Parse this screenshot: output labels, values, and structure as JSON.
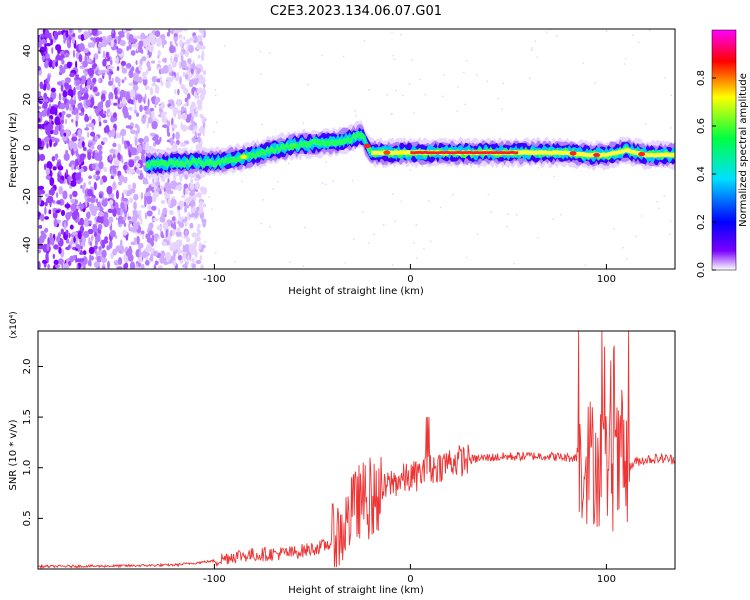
{
  "figure": {
    "title": "C2E3.2023.134.06.07.G01"
  },
  "chart_data": [
    {
      "type": "heatmap",
      "title": "C2E3.2023.134.06.07.G01",
      "xlabel": "Height of straight line (km)",
      "ylabel": "Frequency (Hz)",
      "xlim": [
        -190,
        135
      ],
      "ylim": [
        -50,
        49
      ],
      "x_ticks": [
        -100,
        0,
        100
      ],
      "y_ticks": [
        -40,
        -20,
        0,
        20,
        40
      ],
      "colorbar": {
        "label": "Normalized spectral amplitude",
        "range": [
          0.0,
          1.0
        ],
        "ticks": [
          "0.0",
          "0.2",
          "0.4",
          "0.6",
          "0.8"
        ],
        "colormap": [
          "#ffffff",
          "#7b00ff",
          "#0000ff",
          "#00e0ff",
          "#00ff40",
          "#ffff00",
          "#ff0000",
          "#ff00ff"
        ]
      },
      "ridge_frequency_hz": {
        "x": [
          -135,
          -120,
          -100,
          -80,
          -60,
          -45,
          -35,
          -25,
          -20,
          0,
          20,
          40,
          60,
          80,
          90,
          100,
          110,
          120,
          135
        ],
        "y": [
          -7,
          -6,
          -6,
          -3,
          1,
          2,
          3,
          5,
          -2,
          -2,
          -2,
          -2,
          -2,
          -2,
          -3,
          -3,
          -1,
          -3,
          -3
        ]
      },
      "noise_region_km": [
        -190,
        -105
      ]
    },
    {
      "type": "line",
      "xlabel": "Height of straight line (km)",
      "ylabel": "SNR (10 * v/v)",
      "y_scale_note": "(x10⁴)",
      "xlim": [
        -190,
        135
      ],
      "ylim": [
        0,
        23500
      ],
      "x_ticks": [
        -100,
        0,
        100
      ],
      "y_ticks": [
        "0.5",
        "1.0",
        "1.5",
        "2.0"
      ],
      "color": "#ee3333",
      "series": [
        {
          "x": [
            -190,
            -150,
            -120,
            -100,
            -90,
            -80,
            -70,
            -60,
            -50,
            -45,
            -40,
            -35,
            -30,
            -25,
            -20,
            -15,
            -10,
            -5,
            0,
            5,
            10,
            15,
            20,
            30,
            40,
            50,
            60,
            70,
            80,
            85,
            90,
            95,
            100,
            105,
            110,
            115,
            120,
            125,
            130,
            135
          ],
          "values": [
            250,
            300,
            400,
            800,
            1300,
            1400,
            1500,
            1600,
            2000,
            2200,
            2600,
            3600,
            5500,
            7000,
            6500,
            7500,
            8500,
            8800,
            9000,
            9400,
            9800,
            10200,
            10600,
            10800,
            11000,
            11100,
            11150,
            11150,
            11000,
            11000,
            10800,
            10500,
            10200,
            10000,
            9800,
            10600,
            10800,
            10900,
            10900,
            10800
          ]
        }
      ]
    }
  ]
}
